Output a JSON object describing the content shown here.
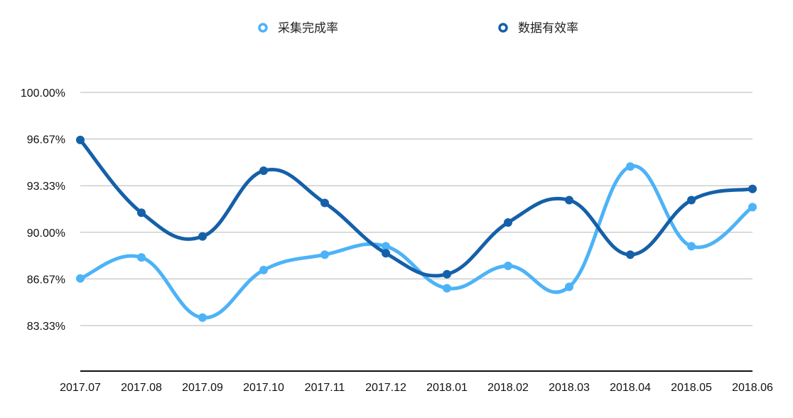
{
  "chart_data": {
    "type": "line",
    "title": "",
    "xlabel": "",
    "ylabel": "",
    "categories": [
      "2017.07",
      "2017.08",
      "2017.09",
      "2017.10",
      "2017.11",
      "2017.12",
      "2018.01",
      "2018.02",
      "2018.03",
      "2018.04",
      "2018.05",
      "2018.06"
    ],
    "y_ticks": [
      "83.33%",
      "86.67%",
      "90.00%",
      "93.33%",
      "96.67%",
      "100.00%"
    ],
    "ylim": [
      80.0,
      100.0
    ],
    "grid": true,
    "legend_position": "top-center",
    "smooth": true,
    "series": [
      {
        "name": "采集完成率",
        "color": "#4db3f7",
        "values": [
          86.7,
          88.2,
          83.9,
          87.3,
          88.4,
          89.0,
          86.0,
          87.6,
          86.1,
          94.7,
          89.0,
          91.8
        ]
      },
      {
        "name": "数据有效率",
        "color": "#1560a8",
        "values": [
          96.6,
          91.4,
          89.7,
          94.4,
          92.1,
          88.5,
          87.0,
          90.7,
          92.3,
          88.4,
          92.3,
          93.1
        ]
      }
    ]
  }
}
